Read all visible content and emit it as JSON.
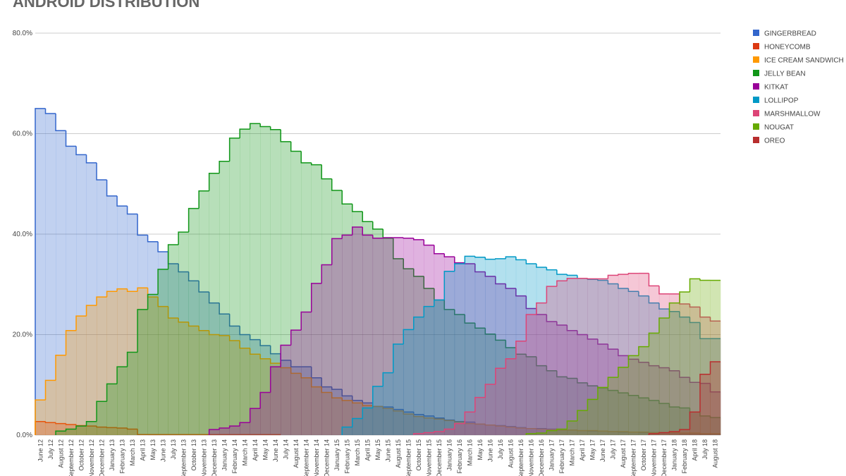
{
  "chart_data": {
    "type": "stepped-area",
    "title": "ANDROID DISTRIBUTION",
    "categories": [
      "June 12",
      "July 12",
      "August 12",
      "September 12",
      "October 12",
      "November 12",
      "December 12",
      "January 13",
      "February 13",
      "March 13",
      "April 13",
      "May 13",
      "June 13",
      "July 13",
      "September 13",
      "October 13",
      "November 13",
      "December 13",
      "January 14",
      "February 14",
      "March 14",
      "April 14",
      "May 14",
      "June 14",
      "July 14",
      "August 14",
      "September 14",
      "November 14",
      "December 14",
      "January 15",
      "February 15",
      "March 15",
      "April 15",
      "May 15",
      "June 15",
      "August 15",
      "September 15",
      "October 15",
      "November 15",
      "December 15",
      "January 16",
      "February 16",
      "March 16",
      "May 16",
      "June 16",
      "July 16",
      "August 16",
      "September 16",
      "November 16",
      "December 16",
      "January 17",
      "February 17",
      "March 17",
      "April 17",
      "May 17",
      "June 17",
      "July 17",
      "August 17",
      "September 17",
      "October 17",
      "November 17",
      "December 17",
      "January 18",
      "February 18",
      "April 18",
      "July 18",
      "August 18"
    ],
    "ylim": [
      0,
      80
    ],
    "yticks": [
      {
        "value": 0,
        "label": "0.0%"
      },
      {
        "value": 20,
        "label": "20.0%"
      },
      {
        "value": 40,
        "label": "40.0%"
      },
      {
        "value": 60,
        "label": "60.0%"
      },
      {
        "value": 80,
        "label": "80.0%"
      }
    ],
    "grid": true,
    "legend": "right",
    "series": [
      {
        "name": "GINGERBREAD",
        "color": "#3366cc",
        "values": [
          65,
          64,
          60.6,
          57.5,
          55.8,
          54.2,
          50.8,
          47.6,
          45.6,
          44,
          39.8,
          38.5,
          36.5,
          34.1,
          32.5,
          30.7,
          28.5,
          26.3,
          24.1,
          21.7,
          20,
          19,
          17.8,
          16.2,
          14.9,
          13.6,
          13.6,
          11.4,
          9.6,
          9.1,
          7.8,
          6.9,
          6.4,
          5.7,
          5.6,
          5.1,
          4.6,
          4.1,
          3.8,
          3.4,
          3,
          2.7,
          2.6,
          2.2,
          2,
          1.9,
          1.7,
          1.5,
          1.3,
          1.3,
          1.2,
          1,
          1,
          0.9,
          0.8,
          0.8,
          0.7,
          0.6,
          0.6,
          0.5,
          0.5,
          0.4,
          0.4,
          0.3,
          0.3,
          0.2,
          0.2
        ]
      },
      {
        "name": "HONEYCOMB",
        "color": "#dc3912",
        "values": [
          2.7,
          2.5,
          2.3,
          2.1,
          1.9,
          1.8,
          1.6,
          1.5,
          1.4,
          1.2,
          0.1,
          0.1,
          0.1,
          0.1,
          0.1,
          0.1,
          0.1,
          0.1,
          0.1,
          0.1,
          0.1,
          0.1,
          0.1,
          0.1,
          null,
          null,
          null,
          null,
          null,
          null,
          null,
          null,
          null,
          null,
          null,
          null,
          null,
          null,
          null,
          null,
          null,
          null,
          null,
          null,
          null,
          null,
          null,
          null,
          null,
          null,
          null,
          null,
          null,
          null,
          null,
          null,
          null,
          null,
          null,
          null,
          null,
          null,
          null,
          null,
          null,
          null,
          null
        ]
      },
      {
        "name": "ICE CREAM SANDWICH",
        "color": "#ff9900",
        "values": [
          7,
          10.9,
          15.9,
          20.8,
          23.7,
          25.8,
          27.5,
          28.6,
          29.1,
          28.6,
          29.3,
          27.5,
          25.6,
          23.3,
          22.5,
          21.7,
          20.8,
          20,
          19.8,
          18.8,
          17.3,
          16.1,
          15.2,
          14.3,
          13.4,
          12.3,
          11.4,
          9.6,
          8.5,
          7.4,
          6.9,
          6.4,
          5.9,
          5.7,
          5.3,
          4.8,
          4.2,
          3.7,
          3.4,
          3.2,
          2.9,
          2.6,
          2.3,
          2.2,
          2,
          1.8,
          1.6,
          1.4,
          1.3,
          1.2,
          1.1,
          1,
          1,
          0.9,
          0.9,
          0.8,
          0.7,
          0.7,
          0.6,
          0.6,
          0.5,
          0.5,
          0.5,
          0.4,
          0.4,
          0.3,
          0.3
        ]
      },
      {
        "name": "JELLY BEAN",
        "color": "#109618",
        "values": [
          null,
          null,
          0.8,
          1.2,
          1.8,
          2.7,
          6.7,
          10.2,
          13.6,
          16.5,
          25,
          28,
          33,
          37.9,
          40.4,
          45.1,
          48.6,
          52.1,
          54.5,
          59.1,
          60.9,
          62,
          61.4,
          60.8,
          58.4,
          56.5,
          54.2,
          53.8,
          51,
          48.7,
          46,
          44.5,
          42.5,
          41,
          39.2,
          35.1,
          33.1,
          31.6,
          29.2,
          26.9,
          25,
          24,
          22.3,
          21.3,
          20.1,
          18.9,
          17.4,
          16.1,
          15.6,
          13.8,
          12.8,
          11.6,
          11.3,
          10.4,
          9.8,
          9.4,
          8.9,
          8.4,
          7.9,
          7.4,
          6.9,
          6.3,
          5.6,
          5.4,
          4.6,
          3.8,
          3.5
        ]
      },
      {
        "name": "KITKAT",
        "color": "#990099",
        "values": [
          null,
          null,
          null,
          null,
          null,
          null,
          null,
          null,
          null,
          null,
          null,
          null,
          null,
          null,
          null,
          null,
          null,
          1.1,
          1.4,
          1.8,
          2.5,
          5.3,
          8.5,
          13.6,
          17.9,
          20.9,
          24.5,
          30.2,
          33.9,
          39.1,
          39.8,
          41.4,
          39.8,
          39.2,
          39.3,
          39.3,
          39.2,
          38.9,
          37.8,
          36.1,
          35.5,
          34.3,
          34.1,
          32.5,
          31.6,
          30.1,
          29.2,
          27.7,
          25.2,
          24,
          22.6,
          21.9,
          20.8,
          20,
          19.1,
          18.1,
          17.1,
          15.8,
          15.1,
          14.5,
          13.8,
          13.4,
          12.8,
          11.5,
          10.5,
          10.3,
          8.6
        ]
      },
      {
        "name": "LOLLIPOP",
        "color": "#0099c6",
        "values": [
          null,
          null,
          null,
          null,
          null,
          null,
          null,
          null,
          null,
          null,
          null,
          null,
          null,
          null,
          null,
          null,
          null,
          null,
          null,
          null,
          null,
          null,
          null,
          null,
          null,
          null,
          null,
          null,
          null,
          null,
          1.6,
          3.3,
          5.4,
          9.7,
          12.4,
          18.1,
          21,
          23.5,
          25.6,
          26.9,
          32.6,
          34.1,
          35.6,
          35.4,
          35,
          35.1,
          35.5,
          34.9,
          34.1,
          33.4,
          32.9,
          32,
          31.8,
          31.2,
          31,
          30.8,
          30.1,
          29.2,
          28.6,
          27.7,
          26.3,
          25.1,
          24.6,
          23.5,
          22.4,
          19.2,
          19.2
        ]
      },
      {
        "name": "MARSHMALLOW",
        "color": "#dd4477",
        "values": [
          null,
          null,
          null,
          null,
          null,
          null,
          null,
          null,
          null,
          null,
          null,
          null,
          null,
          null,
          null,
          null,
          null,
          null,
          null,
          null,
          null,
          null,
          null,
          null,
          null,
          null,
          null,
          null,
          null,
          null,
          null,
          null,
          null,
          null,
          null,
          null,
          null,
          0.3,
          0.5,
          0.7,
          1.2,
          2.3,
          4.6,
          7.5,
          10.1,
          13.3,
          15.2,
          18.7,
          24,
          26.3,
          29.6,
          30.7,
          31.2,
          31.2,
          31.1,
          31.1,
          31.8,
          32,
          32.2,
          32.2,
          29.7,
          28.1,
          28.1,
          26.1,
          25.5,
          23.5,
          22.7
        ]
      },
      {
        "name": "NOUGAT",
        "color": "#66aa00",
        "values": [
          null,
          null,
          null,
          null,
          null,
          null,
          null,
          null,
          null,
          null,
          null,
          null,
          null,
          null,
          null,
          null,
          null,
          null,
          null,
          null,
          null,
          null,
          null,
          null,
          null,
          null,
          null,
          null,
          null,
          null,
          null,
          null,
          null,
          null,
          null,
          null,
          null,
          null,
          null,
          null,
          null,
          null,
          null,
          null,
          null,
          null,
          null,
          null,
          0.3,
          0.4,
          0.9,
          1.2,
          2.8,
          4.9,
          7.1,
          9.5,
          11.5,
          13.5,
          15.8,
          17.6,
          20.3,
          23.3,
          26.3,
          28.5,
          31.1,
          30.8,
          30.8
        ]
      },
      {
        "name": "OREO",
        "color": "#b82e2e",
        "values": [
          null,
          null,
          null,
          null,
          null,
          null,
          null,
          null,
          null,
          null,
          null,
          null,
          null,
          null,
          null,
          null,
          null,
          null,
          null,
          null,
          null,
          null,
          null,
          null,
          null,
          null,
          null,
          null,
          null,
          null,
          null,
          null,
          null,
          null,
          null,
          null,
          null,
          null,
          null,
          null,
          null,
          null,
          null,
          null,
          null,
          null,
          null,
          null,
          null,
          null,
          null,
          null,
          null,
          null,
          null,
          null,
          null,
          null,
          null,
          null,
          0.3,
          0.5,
          0.7,
          1.1,
          4.6,
          12.1,
          14.6
        ]
      }
    ]
  }
}
